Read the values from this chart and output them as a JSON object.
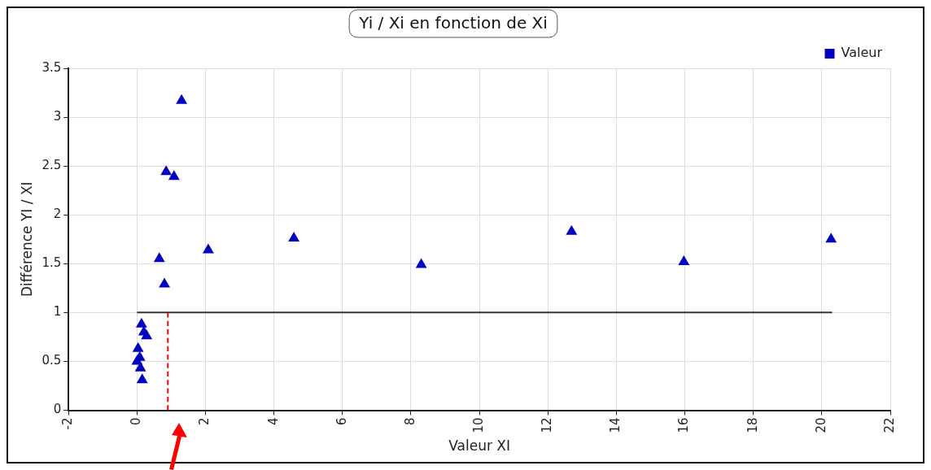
{
  "chart_data": {
    "type": "scatter",
    "title": "Yi / Xi en fonction de Xi",
    "xlabel": "Valeur XI",
    "ylabel": "Différence YI / XI",
    "series": [
      {
        "name": "Valeur",
        "color": "#0000c0",
        "x": [
          1.3,
          0.85,
          1.08,
          0.65,
          0.8,
          2.08,
          4.58,
          8.3,
          12.69,
          15.97,
          20.27,
          0.13,
          0.2,
          0.28,
          0.03,
          0.08,
          0,
          0.1,
          0.15
        ],
        "values": [
          3.17,
          2.44,
          2.39,
          1.55,
          1.29,
          1.64,
          1.76,
          1.49,
          1.83,
          1.52,
          1.75,
          0.88,
          0.8,
          0.76,
          0.63,
          0.54,
          0.5,
          0.43,
          0.31
        ]
      },
      {
        "type": "line",
        "color": "#333333",
        "x": [
          0,
          20.3
        ],
        "values": [
          1,
          1
        ],
        "marker": "none",
        "line_style": "solid"
      },
      {
        "type": "line",
        "color": "#ff0000",
        "x": [
          0.9,
          0.9
        ],
        "values": [
          0,
          1
        ],
        "marker": "none",
        "line_style": "dashed"
      }
    ],
    "xlim": [
      -2,
      22
    ],
    "xticks": [
      -2,
      0,
      2,
      4,
      6,
      8,
      10,
      12,
      14,
      16,
      18,
      20,
      22
    ],
    "ylim": [
      0,
      3.5
    ],
    "yticks": [
      0,
      0.5,
      1,
      1.5,
      2,
      2.5,
      3,
      3.5
    ],
    "marker": "triangle",
    "grid": true,
    "legend": "top right"
  }
}
